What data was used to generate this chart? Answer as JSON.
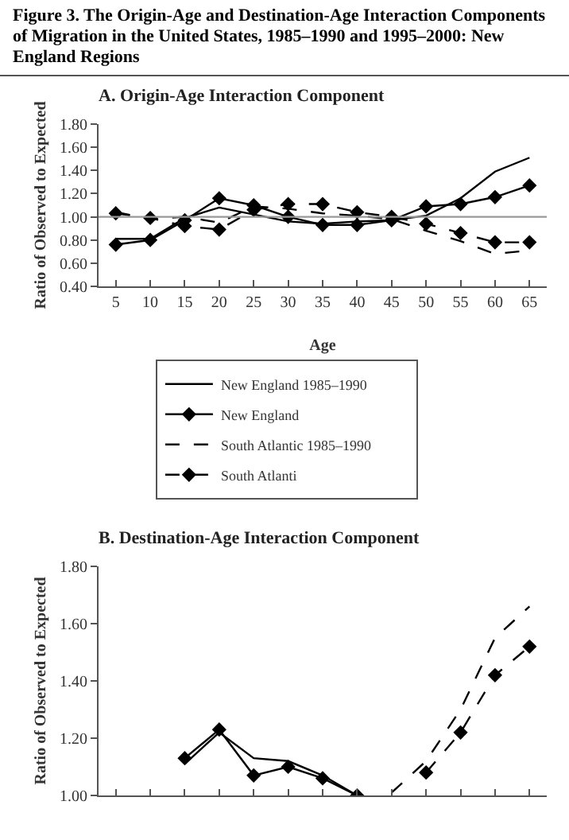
{
  "chart_data": [
    {
      "type": "line",
      "title": "A. Origin-Age Interaction Component",
      "xlabel": "Age",
      "ylabel": "Ratio of Observed to Expected",
      "annotations": [
        "Figure 3. The Origin-Age and Destination-Age Interaction Components of Migration in the United States, 1985–1990 and 1995–2000: New England Regions"
      ],
      "x": [
        5,
        10,
        15,
        20,
        25,
        30,
        35,
        40,
        45,
        50,
        55,
        60,
        65
      ],
      "series": [
        {
          "name": "New England 1985–1990",
          "color": "#000000",
          "line_style": "solid",
          "marker": "none",
          "values": [
            0.81,
            0.81,
            0.99,
            1.08,
            1.02,
            0.96,
            0.94,
            0.96,
            0.97,
            1.01,
            1.16,
            1.39,
            1.51
          ]
        },
        {
          "name": "New England",
          "color": "#000000",
          "line_style": "solid",
          "marker": "diamond",
          "values": [
            0.76,
            0.8,
            0.97,
            1.16,
            1.1,
            1.0,
            0.93,
            0.93,
            0.97,
            1.09,
            1.11,
            1.17,
            1.27
          ]
        },
        {
          "name": "South Atlantic 1985–1990",
          "color": "#000000",
          "line_style": "dashed",
          "marker": "none",
          "values": [
            1.04,
            0.98,
            1.0,
            0.95,
            1.09,
            1.07,
            1.03,
            1.01,
            0.98,
            0.88,
            0.79,
            0.68,
            0.71
          ]
        },
        {
          "name": "South Atlanti",
          "color": "#000000",
          "line_style": "dashed",
          "marker": "diamond",
          "values": [
            1.03,
            0.99,
            0.92,
            0.89,
            1.06,
            1.11,
            1.11,
            1.04,
            1.0,
            0.94,
            0.86,
            0.78,
            0.78
          ]
        }
      ],
      "xlim": [
        2.5,
        67.5
      ],
      "xticks": [
        5,
        10,
        15,
        20,
        25,
        30,
        35,
        40,
        45,
        50,
        55,
        60,
        65
      ],
      "ylim": [
        0.4,
        1.8
      ],
      "yticks": [
        {
          "value": 0.4,
          "label": "0.40"
        },
        {
          "value": 0.6,
          "label": "0.60"
        },
        {
          "value": 0.8,
          "label": "0.80"
        },
        {
          "value": 1.0,
          "label": "1.00"
        },
        {
          "value": 1.2,
          "label": "1.20"
        },
        {
          "value": 1.4,
          "label": "1.40"
        },
        {
          "value": 1.6,
          "label": "1.60"
        },
        {
          "value": 1.8,
          "label": "1.80"
        }
      ],
      "ref_lines": [
        {
          "axis": "y",
          "value": 1.0,
          "color": "#999999"
        }
      ],
      "grid": false,
      "legend": "bottom"
    },
    {
      "type": "line",
      "title": "B. Destination-Age Interaction Component",
      "ylabel": "Ratio of Observed to Expected",
      "x": [
        15,
        20,
        25,
        30,
        35,
        40,
        45,
        50,
        55,
        60,
        65
      ],
      "series": [
        {
          "color": "#000000",
          "line_style": "solid",
          "marker": "none",
          "values": [
            1.11,
            1.22,
            1.13,
            1.12,
            1.07,
            1.0,
            null,
            null,
            null,
            null,
            null
          ]
        },
        {
          "color": "#000000",
          "line_style": "solid",
          "marker": "diamond",
          "values": [
            1.13,
            1.23,
            1.07,
            1.1,
            1.06,
            1.0,
            null,
            null,
            null,
            null,
            null
          ]
        },
        {
          "color": "#000000",
          "line_style": "dashed",
          "marker": "none",
          "values": [
            null,
            null,
            null,
            null,
            null,
            null,
            1.01,
            1.12,
            1.3,
            1.55,
            1.66
          ]
        },
        {
          "color": "#000000",
          "line_style": "dashed",
          "marker": "diamond",
          "values": [
            null,
            null,
            null,
            null,
            null,
            null,
            null,
            1.08,
            1.22,
            1.42,
            1.52
          ]
        }
      ],
      "xlim": [
        2.5,
        67.5
      ],
      "xticks": [
        5,
        10,
        15,
        20,
        25,
        30,
        35,
        40,
        45,
        50,
        55,
        60,
        65
      ],
      "ylim": [
        1.0,
        1.8
      ],
      "yticks": [
        {
          "value": 1.0,
          "label": "1.00"
        },
        {
          "value": 1.2,
          "label": "1.20"
        },
        {
          "value": 1.4,
          "label": "1.40"
        },
        {
          "value": 1.6,
          "label": "1.60"
        },
        {
          "value": 1.8,
          "label": "1.80"
        }
      ],
      "tick_labels": "y",
      "grid": false,
      "legend": false
    }
  ]
}
